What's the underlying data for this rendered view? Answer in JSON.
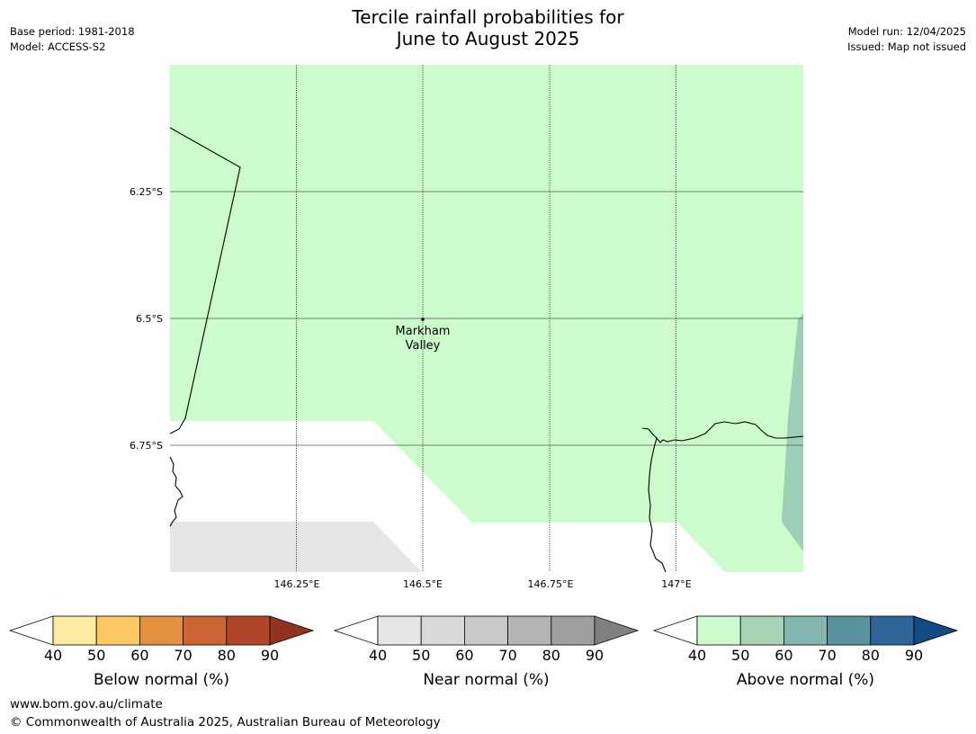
{
  "title": {
    "line1": "Tercile rainfall probabilities for",
    "line2": "June to August 2025"
  },
  "meta_left": {
    "base_period": "Base period: 1981-2018",
    "model": "Model: ACCESS-S2"
  },
  "meta_right": {
    "model_run": "Model run: 12/04/2025",
    "issued": "Issued: Map not issued"
  },
  "map": {
    "lat_labels": [
      "6.25°S",
      "6.5°S",
      "6.75°S"
    ],
    "lon_labels": [
      "146.25°E",
      "146.5°E",
      "146.75°E",
      "147°E"
    ],
    "place": {
      "line1": "Markham",
      "line2": "Valley"
    }
  },
  "colors": {
    "above_50": "#ccfccc",
    "above_60": "#9dcfb7",
    "near_40": "#e6e6e6"
  },
  "legend": {
    "ticks": [
      "40",
      "50",
      "60",
      "70",
      "80",
      "90"
    ],
    "below": {
      "label": "Below normal (%)",
      "colors": [
        "#fdeca0",
        "#fdc964",
        "#e3913f",
        "#cd6433",
        "#af4526",
        "#923320"
      ]
    },
    "near": {
      "label": "Near normal (%)",
      "colors": [
        "#e6e6e6",
        "#d9d9d9",
        "#c9c9c9",
        "#b4b4b4",
        "#9f9f9f",
        "#808080"
      ]
    },
    "above": {
      "label": "Above normal (%)",
      "colors": [
        "#ccfccc",
        "#a6d4b4",
        "#82b8b0",
        "#5a92a0",
        "#2e6499",
        "#144a84"
      ]
    }
  },
  "footer": {
    "url": "www.bom.gov.au/climate",
    "copyright": "© Commonwealth of Australia 2025, Australian Bureau of Meteorology"
  }
}
